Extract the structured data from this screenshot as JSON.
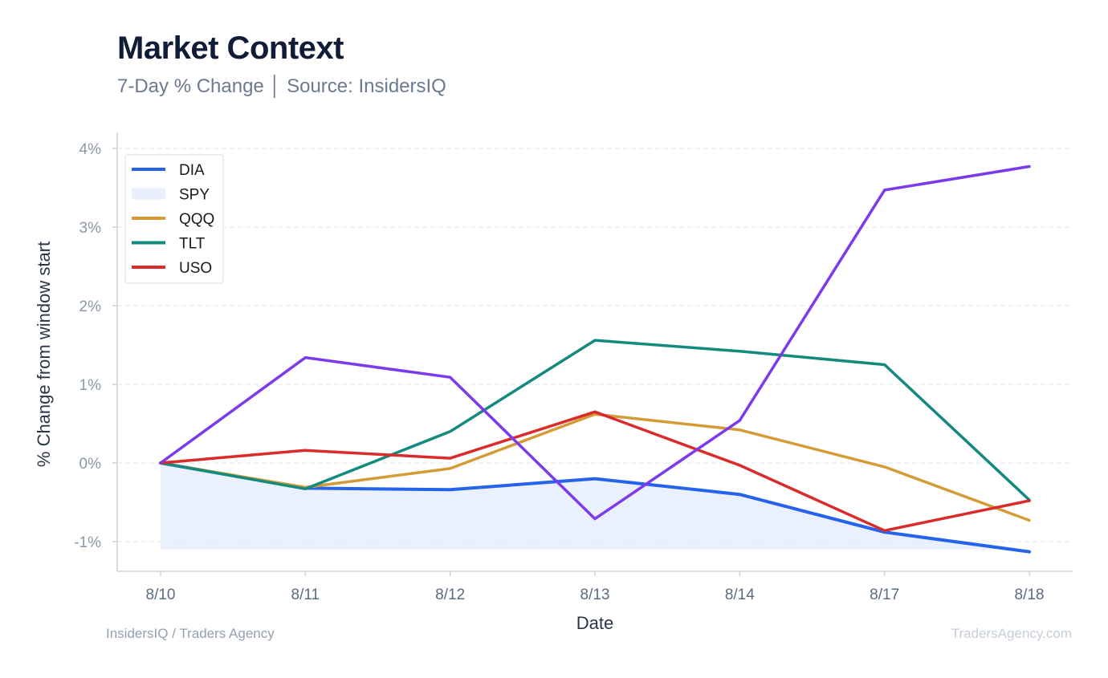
{
  "header": {
    "title": "Market Context",
    "subtitle": "7-Day % Change │ Source: InsidersIQ"
  },
  "footer": {
    "left": "InsidersIQ / Traders Agency",
    "right": "TradersAgency.com"
  },
  "chart_data": {
    "type": "line",
    "xlabel": "Date",
    "ylabel": "% Change from window start",
    "categories": [
      "8/10",
      "8/11",
      "8/12",
      "8/13",
      "8/14",
      "8/17",
      "8/18"
    ],
    "ylim": [
      -1.37,
      4.0
    ],
    "yticks": [
      -1,
      0,
      1,
      2,
      3,
      4
    ],
    "ytick_labels": [
      "-1%",
      "0%",
      "1%",
      "2%",
      "3%",
      "4%"
    ],
    "grid": true,
    "legend_position": "top-left",
    "series": [
      {
        "name": "DIA",
        "kind": "line",
        "color": "#2563eb",
        "values": [
          0.0,
          -0.32,
          -0.34,
          -0.2,
          -0.4,
          -0.88,
          -1.13
        ]
      },
      {
        "name": "SPY",
        "kind": "area",
        "color": "#dbe4fb",
        "values": [
          -1.1,
          -1.1,
          -1.1,
          -1.1,
          -1.1,
          -1.1,
          -1.1
        ]
      },
      {
        "name": "QQQ",
        "kind": "line",
        "color": "#d49c37",
        "values": [
          0.0,
          -0.31,
          -0.07,
          0.62,
          0.42,
          -0.05,
          -0.73
        ]
      },
      {
        "name": "TLT",
        "kind": "line",
        "color": "#138a7e",
        "values": [
          0.0,
          -0.33,
          0.4,
          1.56,
          1.42,
          1.25,
          -0.47
        ]
      },
      {
        "name": "USO",
        "kind": "line",
        "color": "#d92b2b",
        "values": [
          0.0,
          0.16,
          0.06,
          0.65,
          -0.03,
          -0.86,
          -0.48
        ]
      },
      {
        "kind": "line",
        "color": "#7c3aed",
        "values": [
          0.0,
          1.34,
          1.09,
          -0.71,
          0.54,
          3.47,
          3.77
        ]
      }
    ]
  }
}
